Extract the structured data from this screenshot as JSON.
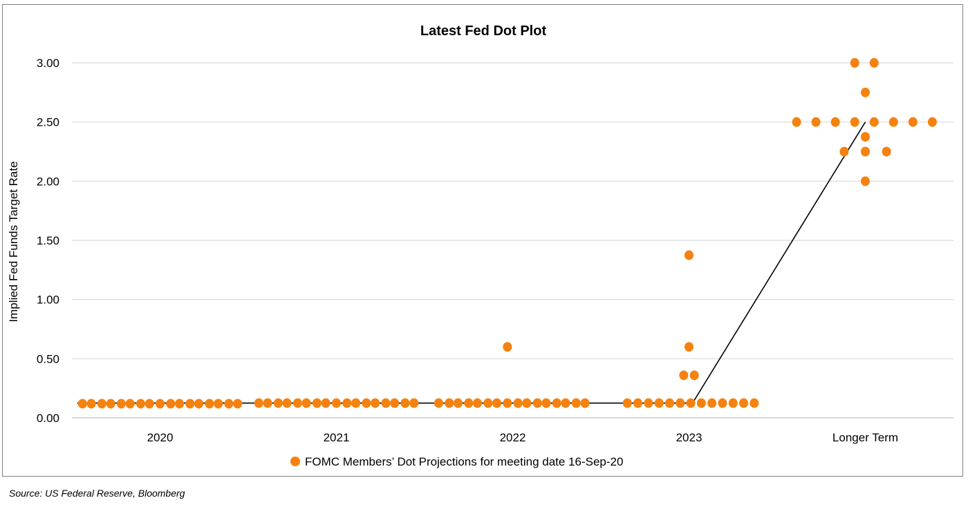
{
  "source_note": "Source: US Federal Reserve, Bloomberg",
  "colors": {
    "dot": "#F5820F",
    "line": "#000000",
    "grid": "#d9d9d9"
  },
  "chart_data": {
    "type": "scatter",
    "title": "Latest Fed Dot Plot",
    "ylabel": "Implied Fed Funds Target Rate",
    "ylim": [
      0,
      3.0
    ],
    "yticks": [
      "0.00",
      "0.50",
      "1.00",
      "1.50",
      "2.00",
      "2.50",
      "3.00"
    ],
    "categories": [
      "2020",
      "2021",
      "2022",
      "2023",
      "Longer Term"
    ],
    "grid": true,
    "legend": {
      "position": "bottom",
      "label": "FOMC Members’ Dot Projections for meeting date 16-Sep-20"
    },
    "median_line": [
      0.125,
      0.125,
      0.125,
      0.125,
      2.5
    ],
    "groups": [
      {
        "category": "2020",
        "dots": [
          {
            "offset": -0.44,
            "y": 0.12
          },
          {
            "offset": -0.39,
            "y": 0.12
          },
          {
            "offset": -0.33,
            "y": 0.12
          },
          {
            "offset": -0.28,
            "y": 0.12
          },
          {
            "offset": -0.22,
            "y": 0.12
          },
          {
            "offset": -0.17,
            "y": 0.12
          },
          {
            "offset": -0.11,
            "y": 0.12
          },
          {
            "offset": -0.06,
            "y": 0.12
          },
          {
            "offset": 0.0,
            "y": 0.12
          },
          {
            "offset": 0.06,
            "y": 0.12
          },
          {
            "offset": 0.11,
            "y": 0.12
          },
          {
            "offset": 0.17,
            "y": 0.12
          },
          {
            "offset": 0.22,
            "y": 0.12
          },
          {
            "offset": 0.28,
            "y": 0.12
          },
          {
            "offset": 0.33,
            "y": 0.12
          },
          {
            "offset": 0.39,
            "y": 0.12
          },
          {
            "offset": 0.44,
            "y": 0.12
          }
        ]
      },
      {
        "category": "2021",
        "dots": [
          {
            "offset": -0.44,
            "y": 0.125
          },
          {
            "offset": -0.39,
            "y": 0.125
          },
          {
            "offset": -0.33,
            "y": 0.125
          },
          {
            "offset": -0.28,
            "y": 0.125
          },
          {
            "offset": -0.22,
            "y": 0.125
          },
          {
            "offset": -0.17,
            "y": 0.125
          },
          {
            "offset": -0.11,
            "y": 0.125
          },
          {
            "offset": -0.06,
            "y": 0.125
          },
          {
            "offset": 0.0,
            "y": 0.125
          },
          {
            "offset": 0.06,
            "y": 0.125
          },
          {
            "offset": 0.11,
            "y": 0.125
          },
          {
            "offset": 0.17,
            "y": 0.125
          },
          {
            "offset": 0.22,
            "y": 0.125
          },
          {
            "offset": 0.28,
            "y": 0.125
          },
          {
            "offset": 0.33,
            "y": 0.125
          },
          {
            "offset": 0.39,
            "y": 0.125
          },
          {
            "offset": 0.44,
            "y": 0.125
          }
        ]
      },
      {
        "category": "2022",
        "dots": [
          {
            "offset": -0.42,
            "y": 0.125
          },
          {
            "offset": -0.36,
            "y": 0.125
          },
          {
            "offset": -0.31,
            "y": 0.125
          },
          {
            "offset": -0.25,
            "y": 0.125
          },
          {
            "offset": -0.2,
            "y": 0.125
          },
          {
            "offset": -0.14,
            "y": 0.125
          },
          {
            "offset": -0.09,
            "y": 0.125
          },
          {
            "offset": -0.03,
            "y": 0.125
          },
          {
            "offset": 0.03,
            "y": 0.125
          },
          {
            "offset": 0.08,
            "y": 0.125
          },
          {
            "offset": 0.14,
            "y": 0.125
          },
          {
            "offset": 0.19,
            "y": 0.125
          },
          {
            "offset": 0.25,
            "y": 0.125
          },
          {
            "offset": 0.3,
            "y": 0.125
          },
          {
            "offset": 0.36,
            "y": 0.125
          },
          {
            "offset": 0.41,
            "y": 0.125
          },
          {
            "offset": -0.03,
            "y": 0.6
          }
        ]
      },
      {
        "category": "2023",
        "dots": [
          {
            "offset": -0.35,
            "y": 0.125
          },
          {
            "offset": -0.29,
            "y": 0.125
          },
          {
            "offset": -0.23,
            "y": 0.125
          },
          {
            "offset": -0.17,
            "y": 0.125
          },
          {
            "offset": -0.11,
            "y": 0.125
          },
          {
            "offset": -0.05,
            "y": 0.125
          },
          {
            "offset": 0.01,
            "y": 0.125
          },
          {
            "offset": 0.07,
            "y": 0.125
          },
          {
            "offset": 0.13,
            "y": 0.125
          },
          {
            "offset": 0.19,
            "y": 0.125
          },
          {
            "offset": 0.25,
            "y": 0.125
          },
          {
            "offset": 0.31,
            "y": 0.125
          },
          {
            "offset": 0.37,
            "y": 0.125
          },
          {
            "offset": -0.03,
            "y": 0.36
          },
          {
            "offset": 0.03,
            "y": 0.36
          },
          {
            "offset": 0.0,
            "y": 0.6
          },
          {
            "offset": 0.0,
            "y": 1.375
          }
        ]
      },
      {
        "category": "Longer Term",
        "dots": [
          {
            "offset": -0.39,
            "y": 2.5
          },
          {
            "offset": -0.28,
            "y": 2.5
          },
          {
            "offset": -0.17,
            "y": 2.5
          },
          {
            "offset": -0.06,
            "y": 2.5
          },
          {
            "offset": 0.05,
            "y": 2.5
          },
          {
            "offset": 0.16,
            "y": 2.5
          },
          {
            "offset": 0.27,
            "y": 2.5
          },
          {
            "offset": 0.38,
            "y": 2.5
          },
          {
            "offset": -0.12,
            "y": 2.25
          },
          {
            "offset": 0.0,
            "y": 2.25
          },
          {
            "offset": 0.12,
            "y": 2.25
          },
          {
            "offset": 0.0,
            "y": 2.0
          },
          {
            "offset": 0.0,
            "y": 2.375
          },
          {
            "offset": 0.0,
            "y": 2.75
          },
          {
            "offset": -0.06,
            "y": 3.0
          },
          {
            "offset": 0.05,
            "y": 3.0
          }
        ]
      }
    ]
  }
}
